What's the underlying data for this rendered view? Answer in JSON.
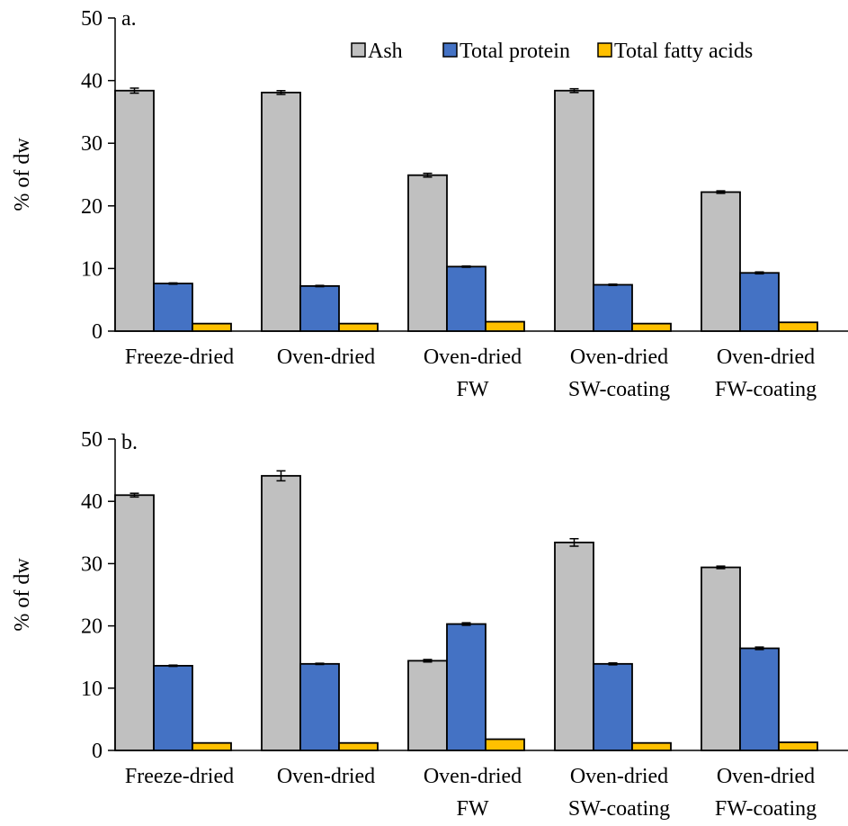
{
  "legend": {
    "items": [
      {
        "label": "Ash",
        "color": "#C0C0C0"
      },
      {
        "label": "Total protein",
        "color": "#4472C4"
      },
      {
        "label": "Total fatty acids",
        "color": "#FFC000"
      }
    ],
    "position": "top-right"
  },
  "chart_data": [
    {
      "type": "bar",
      "panel_label": "a.",
      "ylabel": "% of dw",
      "ylim": [
        0,
        50
      ],
      "yticks": [
        0,
        10,
        20,
        30,
        40,
        50
      ],
      "categories": [
        [
          "Freeze-dried"
        ],
        [
          "Oven-dried"
        ],
        [
          "Oven-dried",
          "FW"
        ],
        [
          "Oven-dried",
          "SW-coating"
        ],
        [
          "Oven-dried",
          "FW-coating"
        ]
      ],
      "series": [
        {
          "name": "Ash",
          "color": "#C0C0C0",
          "values": [
            38.4,
            38.1,
            24.9,
            38.4,
            22.2
          ],
          "errors": [
            0.4,
            0.3,
            0.3,
            0.3,
            0.2
          ]
        },
        {
          "name": "Total protein",
          "color": "#4472C4",
          "values": [
            7.6,
            7.2,
            10.3,
            7.4,
            9.3
          ],
          "errors": [
            0.1,
            0.1,
            0.1,
            0.1,
            0.15
          ]
        },
        {
          "name": "Total fatty acids",
          "color": "#FFC000",
          "values": [
            1.2,
            1.2,
            1.5,
            1.2,
            1.4
          ],
          "errors": [
            0,
            0,
            0,
            0,
            0
          ]
        }
      ],
      "show_legend": true
    },
    {
      "type": "bar",
      "panel_label": "b.",
      "ylabel": "% of dw",
      "ylim": [
        0,
        50
      ],
      "yticks": [
        0,
        10,
        20,
        30,
        40,
        50
      ],
      "categories": [
        [
          "Freeze-dried"
        ],
        [
          "Oven-dried"
        ],
        [
          "Oven-dried",
          "FW"
        ],
        [
          "Oven-dried",
          "SW-coating"
        ],
        [
          "Oven-dried",
          "FW-coating"
        ]
      ],
      "series": [
        {
          "name": "Ash",
          "color": "#C0C0C0",
          "values": [
            41.0,
            44.1,
            14.4,
            33.4,
            29.4
          ],
          "errors": [
            0.3,
            0.8,
            0.2,
            0.6,
            0.2
          ]
        },
        {
          "name": "Total protein",
          "color": "#4472C4",
          "values": [
            13.6,
            13.9,
            20.3,
            13.9,
            16.4
          ],
          "errors": [
            0.1,
            0.1,
            0.2,
            0.15,
            0.2
          ]
        },
        {
          "name": "Total fatty acids",
          "color": "#FFC000",
          "values": [
            1.2,
            1.2,
            1.8,
            1.2,
            1.3
          ],
          "errors": [
            0,
            0,
            0,
            0,
            0
          ]
        }
      ],
      "show_legend": false
    }
  ]
}
